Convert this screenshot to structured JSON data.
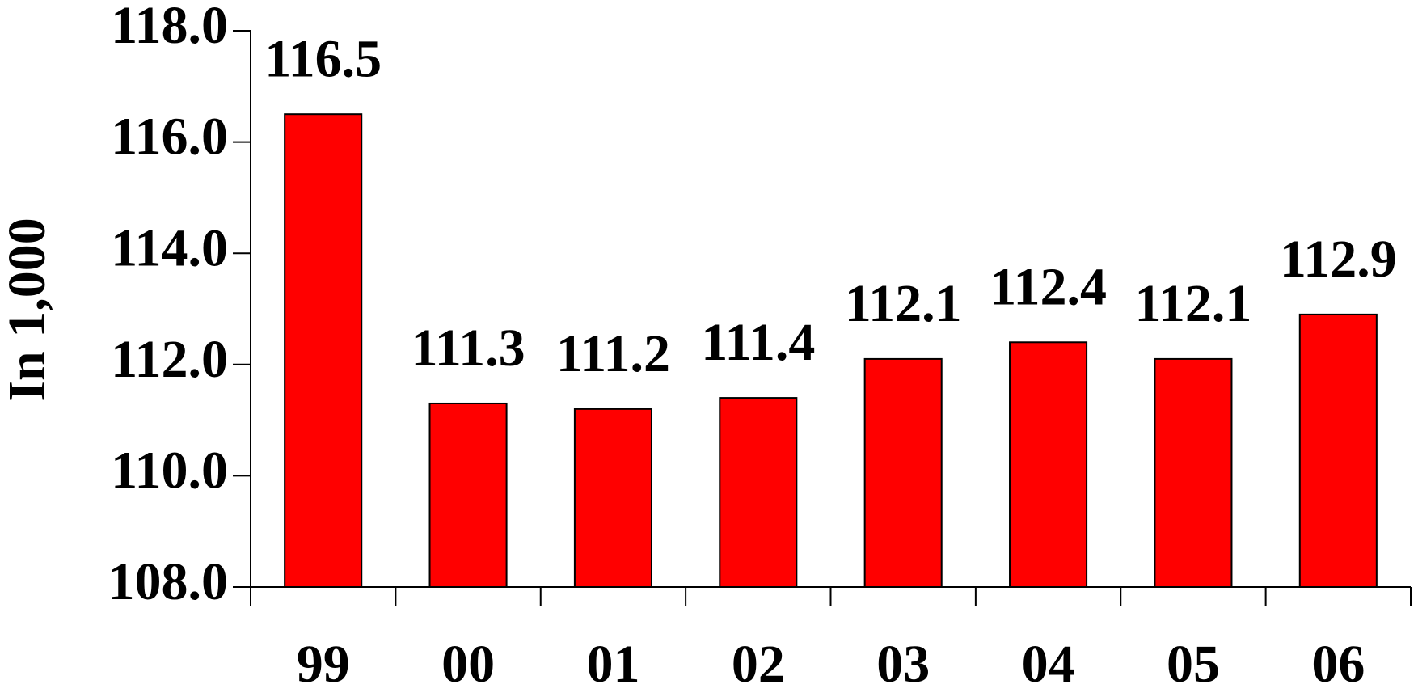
{
  "chart_data": {
    "type": "bar",
    "ylabel": "In 1,000",
    "categories": [
      "99",
      "00",
      "01",
      "02",
      "03",
      "04",
      "05",
      "06"
    ],
    "values": [
      116.5,
      111.3,
      111.2,
      111.4,
      112.1,
      112.4,
      112.1,
      112.9
    ],
    "color": "#ff0000",
    "ylim": [
      108,
      118
    ],
    "yticks": [
      {
        "value": 108,
        "label": "108.0"
      },
      {
        "value": 110,
        "label": "110.0"
      },
      {
        "value": 112,
        "label": "112.0"
      },
      {
        "value": 114,
        "label": "114.0"
      },
      {
        "value": 116,
        "label": "116.0"
      },
      {
        "value": 118,
        "label": "118.0"
      }
    ]
  }
}
